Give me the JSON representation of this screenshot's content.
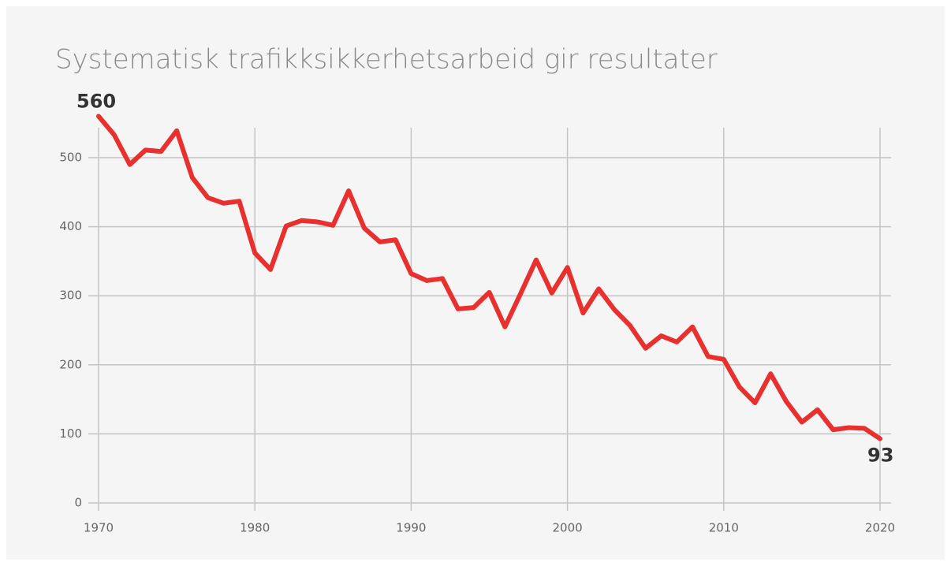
{
  "chart_data": {
    "type": "line",
    "title": "Systematisk trafikksikkerhetsarbeid gir resultater",
    "x": [
      1970,
      1971,
      1972,
      1973,
      1974,
      1975,
      1976,
      1977,
      1978,
      1979,
      1980,
      1981,
      1982,
      1983,
      1984,
      1985,
      1986,
      1987,
      1988,
      1989,
      1990,
      1991,
      1992,
      1993,
      1994,
      1995,
      1996,
      1997,
      1998,
      1999,
      2000,
      2001,
      2002,
      2003,
      2004,
      2005,
      2006,
      2007,
      2008,
      2009,
      2010,
      2011,
      2012,
      2013,
      2014,
      2015,
      2016,
      2017,
      2018,
      2019,
      2020
    ],
    "values": [
      560,
      533,
      490,
      511,
      509,
      539,
      471,
      442,
      434,
      437,
      362,
      338,
      401,
      409,
      407,
      402,
      452,
      398,
      378,
      381,
      332,
      322,
      325,
      281,
      283,
      305,
      255,
      303,
      352,
      304,
      341,
      275,
      310,
      280,
      257,
      224,
      242,
      233,
      255,
      212,
      208,
      168,
      145,
      187,
      147,
      117,
      135,
      106,
      109,
      108,
      93
    ],
    "color": "#e8302f",
    "xlim": [
      1970,
      2020
    ],
    "xticks": [
      1970,
      1980,
      1990,
      2000,
      2010,
      2020
    ],
    "ylim": [
      0,
      560
    ],
    "yticks": [
      0,
      100,
      200,
      300,
      400,
      500
    ],
    "grid": true
  }
}
